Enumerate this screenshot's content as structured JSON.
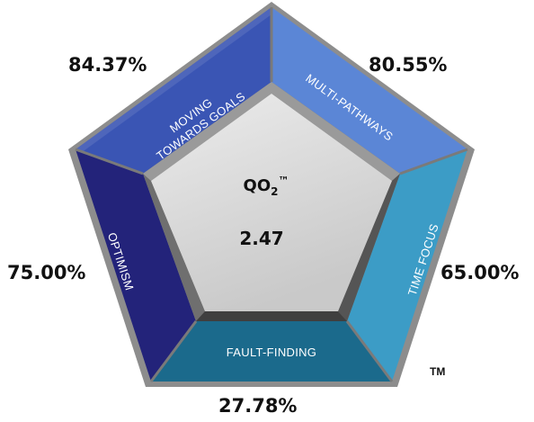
{
  "diagram": {
    "center": {
      "title": "QO",
      "subscript": "2",
      "trademark": "™",
      "value": "2.47"
    },
    "segments": [
      {
        "id": "moving-towards-goals",
        "lines": [
          "MOVING",
          "TOWARDS GOALS"
        ],
        "percentage": "84.37%",
        "color": "#3a55b4"
      },
      {
        "id": "multi-pathways",
        "lines": [
          "MULTI-PATHWAYS"
        ],
        "percentage": "80.55%",
        "color": "#5b86d6"
      },
      {
        "id": "time-focus",
        "lines": [
          "TIME FOCUS"
        ],
        "percentage": "65.00%",
        "color": "#3c9cc6"
      },
      {
        "id": "fault-finding",
        "lines": [
          "FAULT-FINDING"
        ],
        "percentage": "27.78%",
        "color": "#1b6a8c"
      },
      {
        "id": "optimism",
        "lines": [
          "OPTIMISM"
        ],
        "percentage": "75.00%",
        "color": "#23237a"
      }
    ],
    "trademark": "TM"
  }
}
